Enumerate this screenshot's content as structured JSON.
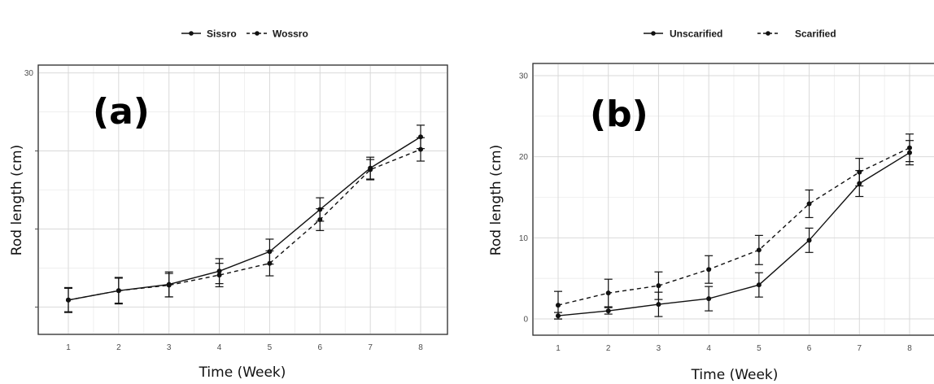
{
  "chart_data": [
    {
      "type": "line",
      "panel_label": "(a)",
      "xlabel": "Time (Week)",
      "ylabel": "Rod length (cm)",
      "categories": [
        1,
        2,
        3,
        4,
        5,
        6,
        7,
        8
      ],
      "x_tick_labels": [
        "1",
        "2",
        "3",
        "4",
        "5",
        "6",
        "7",
        "8"
      ],
      "ylim": [
        -3.5,
        31
      ],
      "y_ticks": [
        0,
        10,
        20,
        30
      ],
      "y_tick_labels": [
        "",
        "",
        "",
        "30"
      ],
      "grid": true,
      "legend_position": "top",
      "series": [
        {
          "name": "Sissro",
          "line": "solid",
          "values": [
            0.9,
            2.1,
            2.9,
            4.6,
            7.1,
            12.5,
            17.8,
            21.8
          ],
          "errors": [
            1.6,
            1.7,
            1.6,
            1.6,
            1.6,
            1.5,
            1.4,
            1.5
          ]
        },
        {
          "name": "Wossro",
          "line": "dashed",
          "values": [
            0.9,
            2.1,
            2.8,
            4.1,
            5.6,
            11.2,
            17.6,
            20.2
          ],
          "errors": [
            1.5,
            1.6,
            1.5,
            1.5,
            1.6,
            1.4,
            1.3,
            1.5
          ]
        }
      ]
    },
    {
      "type": "line",
      "panel_label": "(b)",
      "xlabel": "Time (Week)",
      "ylabel": "Rod length (cm)",
      "categories": [
        1,
        2,
        3,
        4,
        5,
        6,
        7,
        8
      ],
      "x_tick_labels": [
        "1",
        "2",
        "3",
        "4",
        "5",
        "6",
        "7",
        "8"
      ],
      "ylim": [
        -2,
        31.5
      ],
      "y_ticks": [
        0,
        10,
        20,
        30
      ],
      "y_tick_labels": [
        "0",
        "10",
        "20",
        "30"
      ],
      "grid": true,
      "legend_position": "top",
      "series": [
        {
          "name": "Unscarified",
          "line": "solid",
          "values": [
            0.4,
            1.0,
            1.8,
            2.5,
            4.2,
            9.7,
            16.7,
            20.5
          ],
          "errors": [
            0.4,
            0.4,
            1.5,
            1.5,
            1.5,
            1.5,
            1.6,
            1.5
          ]
        },
        {
          "name": "Scarified",
          "line": "dashed",
          "values": [
            1.7,
            3.2,
            4.1,
            6.1,
            8.5,
            14.2,
            18.1,
            21.1
          ],
          "errors": [
            1.7,
            1.7,
            1.7,
            1.7,
            1.8,
            1.7,
            1.7,
            1.7
          ]
        }
      ]
    }
  ]
}
